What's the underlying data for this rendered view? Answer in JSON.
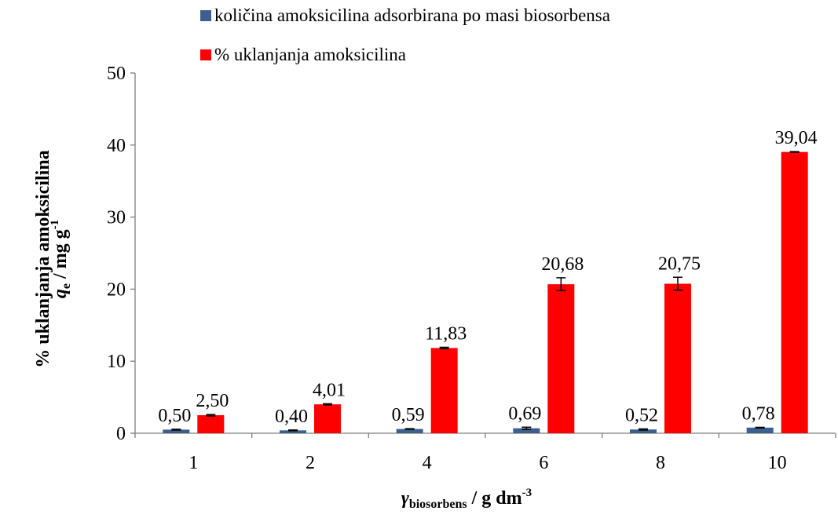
{
  "chart_data": {
    "type": "bar",
    "categories": [
      "1",
      "2",
      "4",
      "6",
      "8",
      "10"
    ],
    "series": [
      {
        "name": "količina amoksicilina adsorbirana po masi biosorbensa",
        "color": "#3C5F8F",
        "values": [
          0.5,
          0.4,
          0.59,
          0.69,
          0.52,
          0.78
        ],
        "labels": [
          "0,50",
          "0,40",
          "0,59",
          "0,69",
          "0,52",
          "0,78"
        ],
        "errors": [
          0.05,
          0.05,
          0.04,
          0.15,
          0.08,
          0.04
        ]
      },
      {
        "name": "% uklanjanja amoksicilina",
        "color": "#FF0000",
        "values": [
          2.5,
          4.01,
          11.83,
          20.68,
          20.75,
          39.04
        ],
        "labels": [
          "2,50",
          "4,01",
          "11,83",
          "20,68",
          "20,75",
          "39,04"
        ],
        "errors": [
          0.1,
          0.08,
          0.1,
          0.9,
          0.9,
          0.05
        ]
      }
    ],
    "ylim": [
      0,
      50
    ],
    "yticks": [
      0,
      10,
      20,
      30,
      40,
      50
    ],
    "ylabel_line1_main": "q",
    "ylabel_line1_sub": "e",
    "ylabel_line1_rest": " / mg g",
    "ylabel_line1_sup": "-1",
    "ylabel_line2": "% uklanjanja amoksicilina",
    "xlabel_main": "γ",
    "xlabel_sub": "biosorbens",
    "xlabel_rest": " / g dm",
    "xlabel_sup": "-3",
    "legend_position": "top",
    "grid": false
  }
}
